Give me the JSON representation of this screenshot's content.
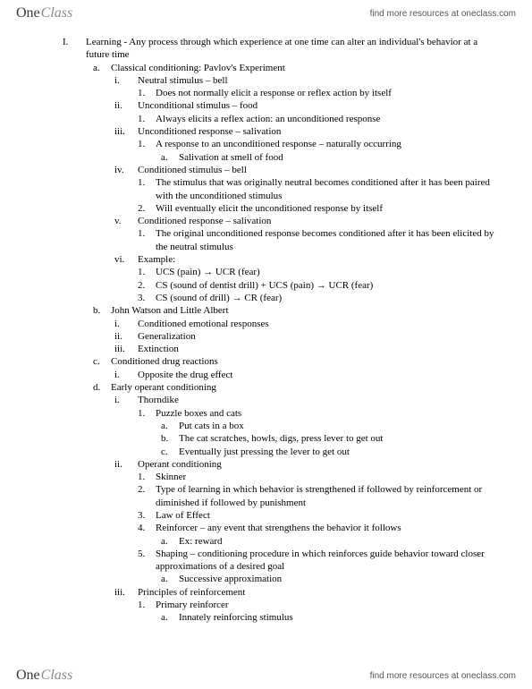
{
  "brand": {
    "one": "One",
    "class": "Class"
  },
  "header_link": "find more resources at oneclass.com",
  "footer_link": "find more resources at oneclass.com",
  "outline": {
    "I": {
      "mk": "I.",
      "text": "Learning - Any process through which experience at one time can alter an individual's behavior at a future time",
      "a": {
        "mk": "a.",
        "text": "Classical conditioning: Pavlov's Experiment",
        "i": {
          "mk": "i.",
          "text": "Neutral stimulus – bell",
          "n1": {
            "mk": "1.",
            "text": "Does not normally elicit a response or reflex action by itself"
          }
        },
        "ii": {
          "mk": "ii.",
          "text": "Unconditional stimulus – food",
          "n1": {
            "mk": "1.",
            "text": "Always elicits a reflex action: an unconditioned response"
          }
        },
        "iii": {
          "mk": "iii.",
          "text": "Unconditioned response – salivation",
          "n1": {
            "mk": "1.",
            "text": "A response to an unconditioned response – naturally occurring",
            "a1": {
              "mk": "a.",
              "text": "Salivation at smell of food"
            }
          }
        },
        "iv": {
          "mk": "iv.",
          "text": "Conditioned stimulus – bell",
          "n1": {
            "mk": "1.",
            "text": "The stimulus that was originally neutral becomes conditioned after it has been paired with the unconditioned stimulus"
          },
          "n2": {
            "mk": "2.",
            "text": "Will eventually elicit the unconditioned response by itself"
          }
        },
        "v": {
          "mk": "v.",
          "text": "Conditioned response – salivation",
          "n1": {
            "mk": "1.",
            "text": "The original unconditioned response becomes conditioned after it has been elicited by the neutral stimulus"
          }
        },
        "vi": {
          "mk": "vi.",
          "text": "Example:",
          "n1": {
            "mk": "1.",
            "pre": "UCS (pain) ",
            "post": " UCR (fear)"
          },
          "n2": {
            "mk": "2.",
            "pre": "CS (sound of dentist drill) + UCS (pain) ",
            "post": " UCR (fear)"
          },
          "n3": {
            "mk": "3.",
            "pre": "CS (sound of drill) ",
            "post": " CR (fear)"
          }
        }
      },
      "b": {
        "mk": "b.",
        "text": "John Watson and Little Albert",
        "i": {
          "mk": "i.",
          "text": "Conditioned emotional responses"
        },
        "ii": {
          "mk": "ii.",
          "text": "Generalization"
        },
        "iii": {
          "mk": "iii.",
          "text": "Extinction"
        }
      },
      "c": {
        "mk": "c.",
        "text": "Conditioned drug reactions",
        "i": {
          "mk": "i.",
          "text": "Opposite the drug effect"
        }
      },
      "d": {
        "mk": "d.",
        "text": "Early operant conditioning",
        "i": {
          "mk": "i.",
          "text": "Thorndike",
          "n1": {
            "mk": "1.",
            "text": "Puzzle boxes and cats",
            "a1": {
              "mk": "a.",
              "text": "Put cats in a box"
            },
            "a2": {
              "mk": "b.",
              "text": "The cat scratches, howls, digs, press lever to get out"
            },
            "a3": {
              "mk": "c.",
              "text": "Eventually just pressing the lever to get out"
            }
          }
        },
        "ii": {
          "mk": "ii.",
          "text": "Operant conditioning",
          "n1": {
            "mk": "1.",
            "text": "Skinner"
          },
          "n2": {
            "mk": "2.",
            "text": "Type of learning in which behavior is strengthened if followed by reinforcement or diminished if followed by punishment"
          },
          "n3": {
            "mk": "3.",
            "text": "Law of Effect"
          },
          "n4": {
            "mk": "4.",
            "text": "Reinforcer – any event that strengthens the behavior it follows",
            "a1": {
              "mk": "a.",
              "text": "Ex: reward"
            }
          },
          "n5": {
            "mk": "5.",
            "text": "Shaping – conditioning procedure in which reinforces guide behavior toward closer approximations of a desired goal",
            "a1": {
              "mk": "a.",
              "text": "Successive approximation"
            }
          }
        },
        "iii": {
          "mk": "iii.",
          "text": "Principles of reinforcement",
          "n1": {
            "mk": "1.",
            "text": "Primary reinforcer",
            "a1": {
              "mk": "a.",
              "text": "Innately reinforcing stimulus"
            }
          }
        }
      }
    }
  },
  "arrow": "→"
}
